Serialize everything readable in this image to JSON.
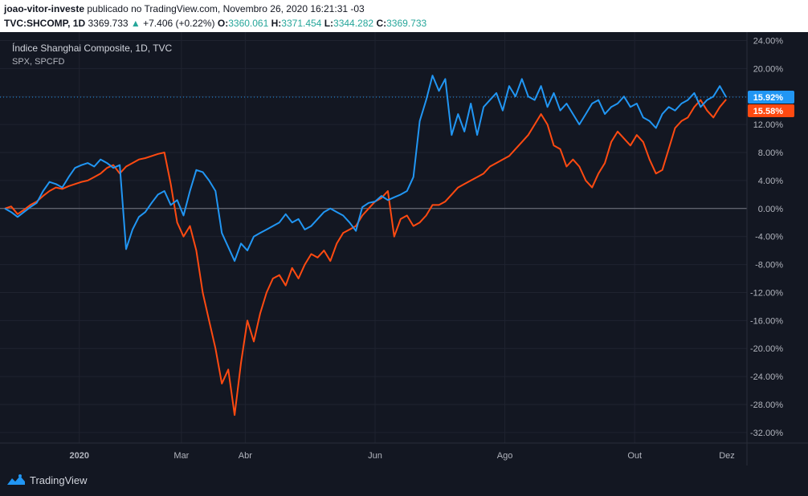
{
  "header": {
    "author": "joao-vitor-investe",
    "published": "publicado no TradingView.com, Novembro 26, 2020 16:21:31 -03",
    "symbol": "TVC:SHCOMP, 1D",
    "price": "3369.733",
    "change_arrow": "▲",
    "change": "+7.406 (+0.22%)",
    "o_label": "O:",
    "o_value": "3360.061",
    "h_label": "H:",
    "h_value": "3371.454",
    "l_label": "L:",
    "l_value": "3344.282",
    "c_label": "C:",
    "c_value": "3369.733"
  },
  "legend": {
    "main": "Índice Shanghai Composite, 1D, TVC",
    "compare": "SPX, SPCFD"
  },
  "footer": {
    "brand": "TradingView"
  },
  "chart_data": {
    "type": "line",
    "yaxis_ticks": [
      "24.00%",
      "20.00%",
      "16.00%",
      "12.00%",
      "8.00%",
      "4.00%",
      "0.00%",
      "-4.00%",
      "-8.00%",
      "-12.00%",
      "-16.00%",
      "-20.00%",
      "-24.00%",
      "-28.00%",
      "-32.00%"
    ],
    "ytick_values": [
      24,
      20,
      16,
      12,
      8,
      4,
      0,
      -4,
      -8,
      -12,
      -16,
      -20,
      -24,
      -28,
      -32
    ],
    "ylim": [
      -33.5,
      25.2
    ],
    "xlim": [
      0,
      345
    ],
    "x_ticks": [
      {
        "label": "2020",
        "x": 35
      },
      {
        "label": "Mar",
        "x": 83
      },
      {
        "label": "Abr",
        "x": 113
      },
      {
        "label": "Jun",
        "x": 174
      },
      {
        "label": "Ago",
        "x": 235
      },
      {
        "label": "Out",
        "x": 296
      },
      {
        "label": "Dez",
        "x": 357
      }
    ],
    "last_labels": [
      {
        "name": "SHCOMP",
        "label": "15.92%",
        "value": 15.92,
        "color": "#2196f3"
      },
      {
        "name": "SPX",
        "label": "15.58%",
        "value": 15.58,
        "color": "#ff4a11"
      }
    ],
    "series": [
      {
        "color": "#2196f3",
        "points": [
          [
            0,
            0
          ],
          [
            3,
            -0.5
          ],
          [
            6,
            -1.2
          ],
          [
            9,
            -0.5
          ],
          [
            12,
            0.2
          ],
          [
            15,
            0.8
          ],
          [
            18,
            2.5
          ],
          [
            21,
            3.8
          ],
          [
            24,
            3.5
          ],
          [
            27,
            3.0
          ],
          [
            30,
            4.5
          ],
          [
            33,
            5.8
          ],
          [
            36,
            6.2
          ],
          [
            39,
            6.5
          ],
          [
            42,
            6.0
          ],
          [
            45,
            7.0
          ],
          [
            48,
            6.5
          ],
          [
            51,
            5.8
          ],
          [
            54,
            6.2
          ],
          [
            57,
            -5.8
          ],
          [
            60,
            -3.0
          ],
          [
            63,
            -1.2
          ],
          [
            66,
            -0.5
          ],
          [
            69,
            0.8
          ],
          [
            72,
            2.0
          ],
          [
            75,
            2.5
          ],
          [
            78,
            0.5
          ],
          [
            81,
            1.2
          ],
          [
            84,
            -1.0
          ],
          [
            87,
            2.5
          ],
          [
            90,
            5.5
          ],
          [
            93,
            5.2
          ],
          [
            96,
            4.0
          ],
          [
            99,
            2.5
          ],
          [
            102,
            -3.5
          ],
          [
            105,
            -5.5
          ],
          [
            108,
            -7.5
          ],
          [
            111,
            -5.0
          ],
          [
            114,
            -6.0
          ],
          [
            117,
            -4.0
          ],
          [
            120,
            -3.5
          ],
          [
            123,
            -3.0
          ],
          [
            126,
            -2.5
          ],
          [
            129,
            -2.0
          ],
          [
            132,
            -0.8
          ],
          [
            135,
            -2.0
          ],
          [
            138,
            -1.5
          ],
          [
            141,
            -3.0
          ],
          [
            144,
            -2.5
          ],
          [
            147,
            -1.5
          ],
          [
            150,
            -0.5
          ],
          [
            153,
            0.0
          ],
          [
            156,
            -0.5
          ],
          [
            159,
            -1.0
          ],
          [
            162,
            -2.0
          ],
          [
            165,
            -3.2
          ],
          [
            168,
            0.2
          ],
          [
            171,
            0.8
          ],
          [
            174,
            1.0
          ],
          [
            177,
            1.8
          ],
          [
            180,
            1.2
          ],
          [
            183,
            1.6
          ],
          [
            186,
            2.0
          ],
          [
            189,
            2.5
          ],
          [
            192,
            4.5
          ],
          [
            195,
            12.5
          ],
          [
            198,
            15.5
          ],
          [
            201,
            19.0
          ],
          [
            204,
            16.8
          ],
          [
            207,
            18.5
          ],
          [
            210,
            10.5
          ],
          [
            213,
            13.5
          ],
          [
            216,
            11.0
          ],
          [
            219,
            15.0
          ],
          [
            222,
            10.5
          ],
          [
            225,
            14.5
          ],
          [
            228,
            15.5
          ],
          [
            231,
            16.5
          ],
          [
            234,
            14.0
          ],
          [
            237,
            17.5
          ],
          [
            240,
            16.0
          ],
          [
            243,
            18.5
          ],
          [
            246,
            16.0
          ],
          [
            249,
            15.5
          ],
          [
            252,
            17.5
          ],
          [
            255,
            14.5
          ],
          [
            258,
            16.5
          ],
          [
            261,
            14.0
          ],
          [
            264,
            15.0
          ],
          [
            267,
            13.5
          ],
          [
            270,
            12.0
          ],
          [
            273,
            13.5
          ],
          [
            276,
            15.0
          ],
          [
            279,
            15.5
          ],
          [
            282,
            13.5
          ],
          [
            285,
            14.5
          ],
          [
            288,
            15.0
          ],
          [
            291,
            16.0
          ],
          [
            294,
            14.5
          ],
          [
            297,
            15.0
          ],
          [
            300,
            13.0
          ],
          [
            303,
            12.5
          ],
          [
            306,
            11.5
          ],
          [
            309,
            13.5
          ],
          [
            312,
            14.5
          ],
          [
            315,
            14.0
          ],
          [
            318,
            15.0
          ],
          [
            321,
            15.5
          ],
          [
            324,
            16.5
          ],
          [
            327,
            14.5
          ],
          [
            330,
            15.5
          ],
          [
            333,
            16.0
          ],
          [
            336,
            17.5
          ],
          [
            339,
            15.9
          ]
        ]
      },
      {
        "color": "#ff4a11",
        "points": [
          [
            0,
            0
          ],
          [
            3,
            0.3
          ],
          [
            6,
            -0.8
          ],
          [
            9,
            -0.2
          ],
          [
            12,
            0.5
          ],
          [
            15,
            1.0
          ],
          [
            18,
            1.8
          ],
          [
            21,
            2.5
          ],
          [
            24,
            3.0
          ],
          [
            27,
            2.8
          ],
          [
            30,
            3.2
          ],
          [
            33,
            3.5
          ],
          [
            36,
            3.8
          ],
          [
            39,
            4.0
          ],
          [
            42,
            4.5
          ],
          [
            45,
            5.0
          ],
          [
            48,
            5.8
          ],
          [
            51,
            6.2
          ],
          [
            54,
            5.0
          ],
          [
            57,
            6.0
          ],
          [
            60,
            6.5
          ],
          [
            63,
            7.0
          ],
          [
            66,
            7.2
          ],
          [
            69,
            7.5
          ],
          [
            72,
            7.8
          ],
          [
            75,
            8.0
          ],
          [
            78,
            3.5
          ],
          [
            81,
            -2.0
          ],
          [
            84,
            -4.0
          ],
          [
            87,
            -2.5
          ],
          [
            90,
            -6.0
          ],
          [
            93,
            -12.0
          ],
          [
            96,
            -16.0
          ],
          [
            99,
            -20.0
          ],
          [
            102,
            -25.0
          ],
          [
            105,
            -23.0
          ],
          [
            108,
            -29.5
          ],
          [
            111,
            -22.0
          ],
          [
            114,
            -16.0
          ],
          [
            117,
            -19.0
          ],
          [
            120,
            -15.0
          ],
          [
            123,
            -12.0
          ],
          [
            126,
            -10.0
          ],
          [
            129,
            -9.5
          ],
          [
            132,
            -11.0
          ],
          [
            135,
            -8.5
          ],
          [
            138,
            -10.0
          ],
          [
            141,
            -8.0
          ],
          [
            144,
            -6.5
          ],
          [
            147,
            -7.0
          ],
          [
            150,
            -6.0
          ],
          [
            153,
            -7.5
          ],
          [
            156,
            -5.0
          ],
          [
            159,
            -3.5
          ],
          [
            162,
            -3.0
          ],
          [
            165,
            -2.5
          ],
          [
            168,
            -1.0
          ],
          [
            171,
            0.0
          ],
          [
            174,
            1.0
          ],
          [
            177,
            1.5
          ],
          [
            180,
            2.5
          ],
          [
            183,
            -4.0
          ],
          [
            186,
            -1.5
          ],
          [
            189,
            -1.0
          ],
          [
            192,
            -2.5
          ],
          [
            195,
            -2.0
          ],
          [
            198,
            -1.0
          ],
          [
            201,
            0.5
          ],
          [
            204,
            0.5
          ],
          [
            207,
            1.0
          ],
          [
            210,
            2.0
          ],
          [
            213,
            3.0
          ],
          [
            216,
            3.5
          ],
          [
            219,
            4.0
          ],
          [
            222,
            4.5
          ],
          [
            225,
            5.0
          ],
          [
            228,
            6.0
          ],
          [
            231,
            6.5
          ],
          [
            234,
            7.0
          ],
          [
            237,
            7.5
          ],
          [
            240,
            8.5
          ],
          [
            243,
            9.5
          ],
          [
            246,
            10.5
          ],
          [
            249,
            12.0
          ],
          [
            252,
            13.5
          ],
          [
            255,
            12.0
          ],
          [
            258,
            9.0
          ],
          [
            261,
            8.5
          ],
          [
            264,
            6.0
          ],
          [
            267,
            7.0
          ],
          [
            270,
            6.0
          ],
          [
            273,
            4.0
          ],
          [
            276,
            3.0
          ],
          [
            279,
            5.0
          ],
          [
            282,
            6.5
          ],
          [
            285,
            9.5
          ],
          [
            288,
            11.0
          ],
          [
            291,
            10.0
          ],
          [
            294,
            9.0
          ],
          [
            297,
            10.5
          ],
          [
            300,
            9.5
          ],
          [
            303,
            7.0
          ],
          [
            306,
            5.0
          ],
          [
            309,
            5.5
          ],
          [
            312,
            8.5
          ],
          [
            315,
            11.5
          ],
          [
            318,
            12.5
          ],
          [
            321,
            13.0
          ],
          [
            324,
            14.5
          ],
          [
            327,
            15.5
          ],
          [
            330,
            14.0
          ],
          [
            333,
            13.0
          ],
          [
            336,
            14.5
          ],
          [
            339,
            15.58
          ]
        ]
      }
    ]
  }
}
